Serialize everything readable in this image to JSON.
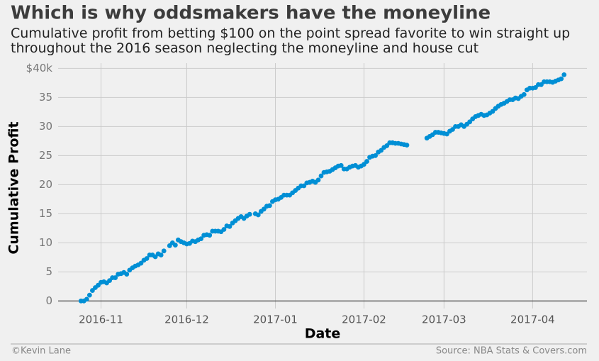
{
  "chart_data": {
    "type": "scatter",
    "title": "Which is why oddsmakers have the moneyline",
    "subtitle": "Cumulative profit from betting $100 on the point spread favorite to win straight up throughout the 2016 season neglecting the moneyline and house cut",
    "x_label": "Date",
    "y_label": "Cumulative Profit",
    "footer_left": "©Kevin Lane",
    "footer_right": "Source: NBA Stats & Covers.com",
    "color": "#008fd5",
    "grid": true,
    "xlim": [
      "2016-10-17",
      "2017-04-20"
    ],
    "xticks": [
      {
        "value": "2016-11-01",
        "label": "2016-11"
      },
      {
        "value": "2016-12-01",
        "label": "2016-12"
      },
      {
        "value": "2017-01-01",
        "label": "2017-01"
      },
      {
        "value": "2017-02-01",
        "label": "2017-02"
      },
      {
        "value": "2017-03-01",
        "label": "2017-03"
      },
      {
        "value": "2017-04-01",
        "label": "2017-04"
      }
    ],
    "ylim": [
      -1.3,
      40.9
    ],
    "yticks": [
      0,
      5,
      10,
      15,
      20,
      25,
      30,
      35,
      {
        "value": 40,
        "label": "$40k"
      }
    ],
    "x": [
      "2016-10-25",
      "2016-10-26",
      "2016-10-27",
      "2016-10-28",
      "2016-10-29",
      "2016-10-30",
      "2016-10-31",
      "2016-11-01",
      "2016-11-02",
      "2016-11-03",
      "2016-11-04",
      "2016-11-05",
      "2016-11-06",
      "2016-11-07",
      "2016-11-08",
      "2016-11-09",
      "2016-11-10",
      "2016-11-11",
      "2016-11-12",
      "2016-11-13",
      "2016-11-14",
      "2016-11-15",
      "2016-11-16",
      "2016-11-17",
      "2016-11-18",
      "2016-11-19",
      "2016-11-20",
      "2016-11-21",
      "2016-11-22",
      "2016-11-23",
      "2016-11-25",
      "2016-11-26",
      "2016-11-27",
      "2016-11-28",
      "2016-11-29",
      "2016-11-30",
      "2016-12-01",
      "2016-12-02",
      "2016-12-03",
      "2016-12-04",
      "2016-12-05",
      "2016-12-06",
      "2016-12-07",
      "2016-12-08",
      "2016-12-09",
      "2016-12-10",
      "2016-12-11",
      "2016-12-12",
      "2016-12-13",
      "2016-12-14",
      "2016-12-15",
      "2016-12-16",
      "2016-12-17",
      "2016-12-18",
      "2016-12-19",
      "2016-12-20",
      "2016-12-21",
      "2016-12-22",
      "2016-12-23",
      "2016-12-25",
      "2016-12-26",
      "2016-12-27",
      "2016-12-28",
      "2016-12-29",
      "2016-12-30",
      "2016-12-31",
      "2017-01-01",
      "2017-01-02",
      "2017-01-03",
      "2017-01-04",
      "2017-01-05",
      "2017-01-06",
      "2017-01-07",
      "2017-01-08",
      "2017-01-09",
      "2017-01-10",
      "2017-01-11",
      "2017-01-12",
      "2017-01-13",
      "2017-01-14",
      "2017-01-15",
      "2017-01-16",
      "2017-01-17",
      "2017-01-18",
      "2017-01-19",
      "2017-01-20",
      "2017-01-21",
      "2017-01-22",
      "2017-01-23",
      "2017-01-24",
      "2017-01-25",
      "2017-01-26",
      "2017-01-27",
      "2017-01-28",
      "2017-01-29",
      "2017-01-30",
      "2017-01-31",
      "2017-02-01",
      "2017-02-02",
      "2017-02-03",
      "2017-02-04",
      "2017-02-05",
      "2017-02-06",
      "2017-02-07",
      "2017-02-08",
      "2017-02-09",
      "2017-02-10",
      "2017-02-11",
      "2017-02-12",
      "2017-02-13",
      "2017-02-14",
      "2017-02-15",
      "2017-02-16",
      "2017-02-23",
      "2017-02-24",
      "2017-02-25",
      "2017-02-26",
      "2017-02-27",
      "2017-02-28",
      "2017-03-01",
      "2017-03-02",
      "2017-03-03",
      "2017-03-04",
      "2017-03-05",
      "2017-03-06",
      "2017-03-07",
      "2017-03-08",
      "2017-03-09",
      "2017-03-10",
      "2017-03-11",
      "2017-03-12",
      "2017-03-13",
      "2017-03-14",
      "2017-03-15",
      "2017-03-16",
      "2017-03-17",
      "2017-03-18",
      "2017-03-19",
      "2017-03-20",
      "2017-03-21",
      "2017-03-22",
      "2017-03-23",
      "2017-03-24",
      "2017-03-25",
      "2017-03-26",
      "2017-03-27",
      "2017-03-28",
      "2017-03-29",
      "2017-03-30",
      "2017-03-31",
      "2017-04-01",
      "2017-04-02",
      "2017-04-03",
      "2017-04-04",
      "2017-04-05",
      "2017-04-06",
      "2017-04-07",
      "2017-04-08",
      "2017-04-09",
      "2017-04-10",
      "2017-04-11",
      "2017-04-12"
    ],
    "values": [
      0,
      0,
      0.3,
      1.0,
      1.8,
      2.3,
      2.7,
      3.2,
      3.3,
      3.1,
      3.5,
      4.0,
      4.0,
      4.6,
      4.7,
      4.9,
      4.6,
      5.3,
      5.7,
      6.0,
      6.2,
      6.5,
      7.0,
      7.3,
      7.9,
      7.9,
      7.6,
      8.1,
      7.9,
      8.6,
      9.5,
      10.0,
      9.6,
      10.5,
      10.2,
      10.0,
      9.8,
      9.9,
      10.3,
      10.2,
      10.5,
      10.7,
      11.3,
      11.4,
      11.3,
      12.0,
      12.0,
      12.0,
      11.9,
      12.3,
      12.9,
      12.8,
      13.4,
      13.8,
      14.2,
      14.5,
      14.2,
      14.6,
      14.9,
      15.0,
      14.8,
      15.4,
      15.8,
      16.3,
      16.4,
      17.1,
      17.4,
      17.5,
      17.8,
      18.2,
      18.2,
      18.2,
      18.6,
      19.0,
      19.4,
      19.8,
      19.8,
      20.3,
      20.4,
      20.6,
      20.4,
      20.8,
      21.5,
      22.1,
      22.2,
      22.3,
      22.6,
      22.9,
      23.2,
      23.3,
      22.7,
      22.7,
      23.0,
      23.2,
      23.3,
      23.0,
      23.2,
      23.5,
      24.0,
      24.7,
      24.9,
      25.0,
      25.6,
      25.9,
      26.4,
      26.7,
      27.2,
      27.2,
      27.1,
      27.1,
      27.0,
      26.9,
      26.8,
      28.0,
      28.3,
      28.6,
      29.0,
      29.0,
      28.9,
      28.8,
      28.7,
      29.2,
      29.5,
      30.0,
      30.0,
      30.3,
      30.0,
      30.4,
      30.8,
      31.3,
      31.7,
      31.9,
      32.1,
      31.9,
      32.0,
      32.3,
      32.6,
      33.1,
      33.5,
      33.8,
      34.0,
      34.3,
      34.6,
      34.6,
      34.9,
      34.8,
      35.2,
      35.5,
      36.3,
      36.6,
      36.6,
      36.7,
      37.2,
      37.2,
      37.7,
      37.7,
      37.7,
      37.6,
      37.8,
      38.0,
      38.2,
      38.9
    ]
  }
}
